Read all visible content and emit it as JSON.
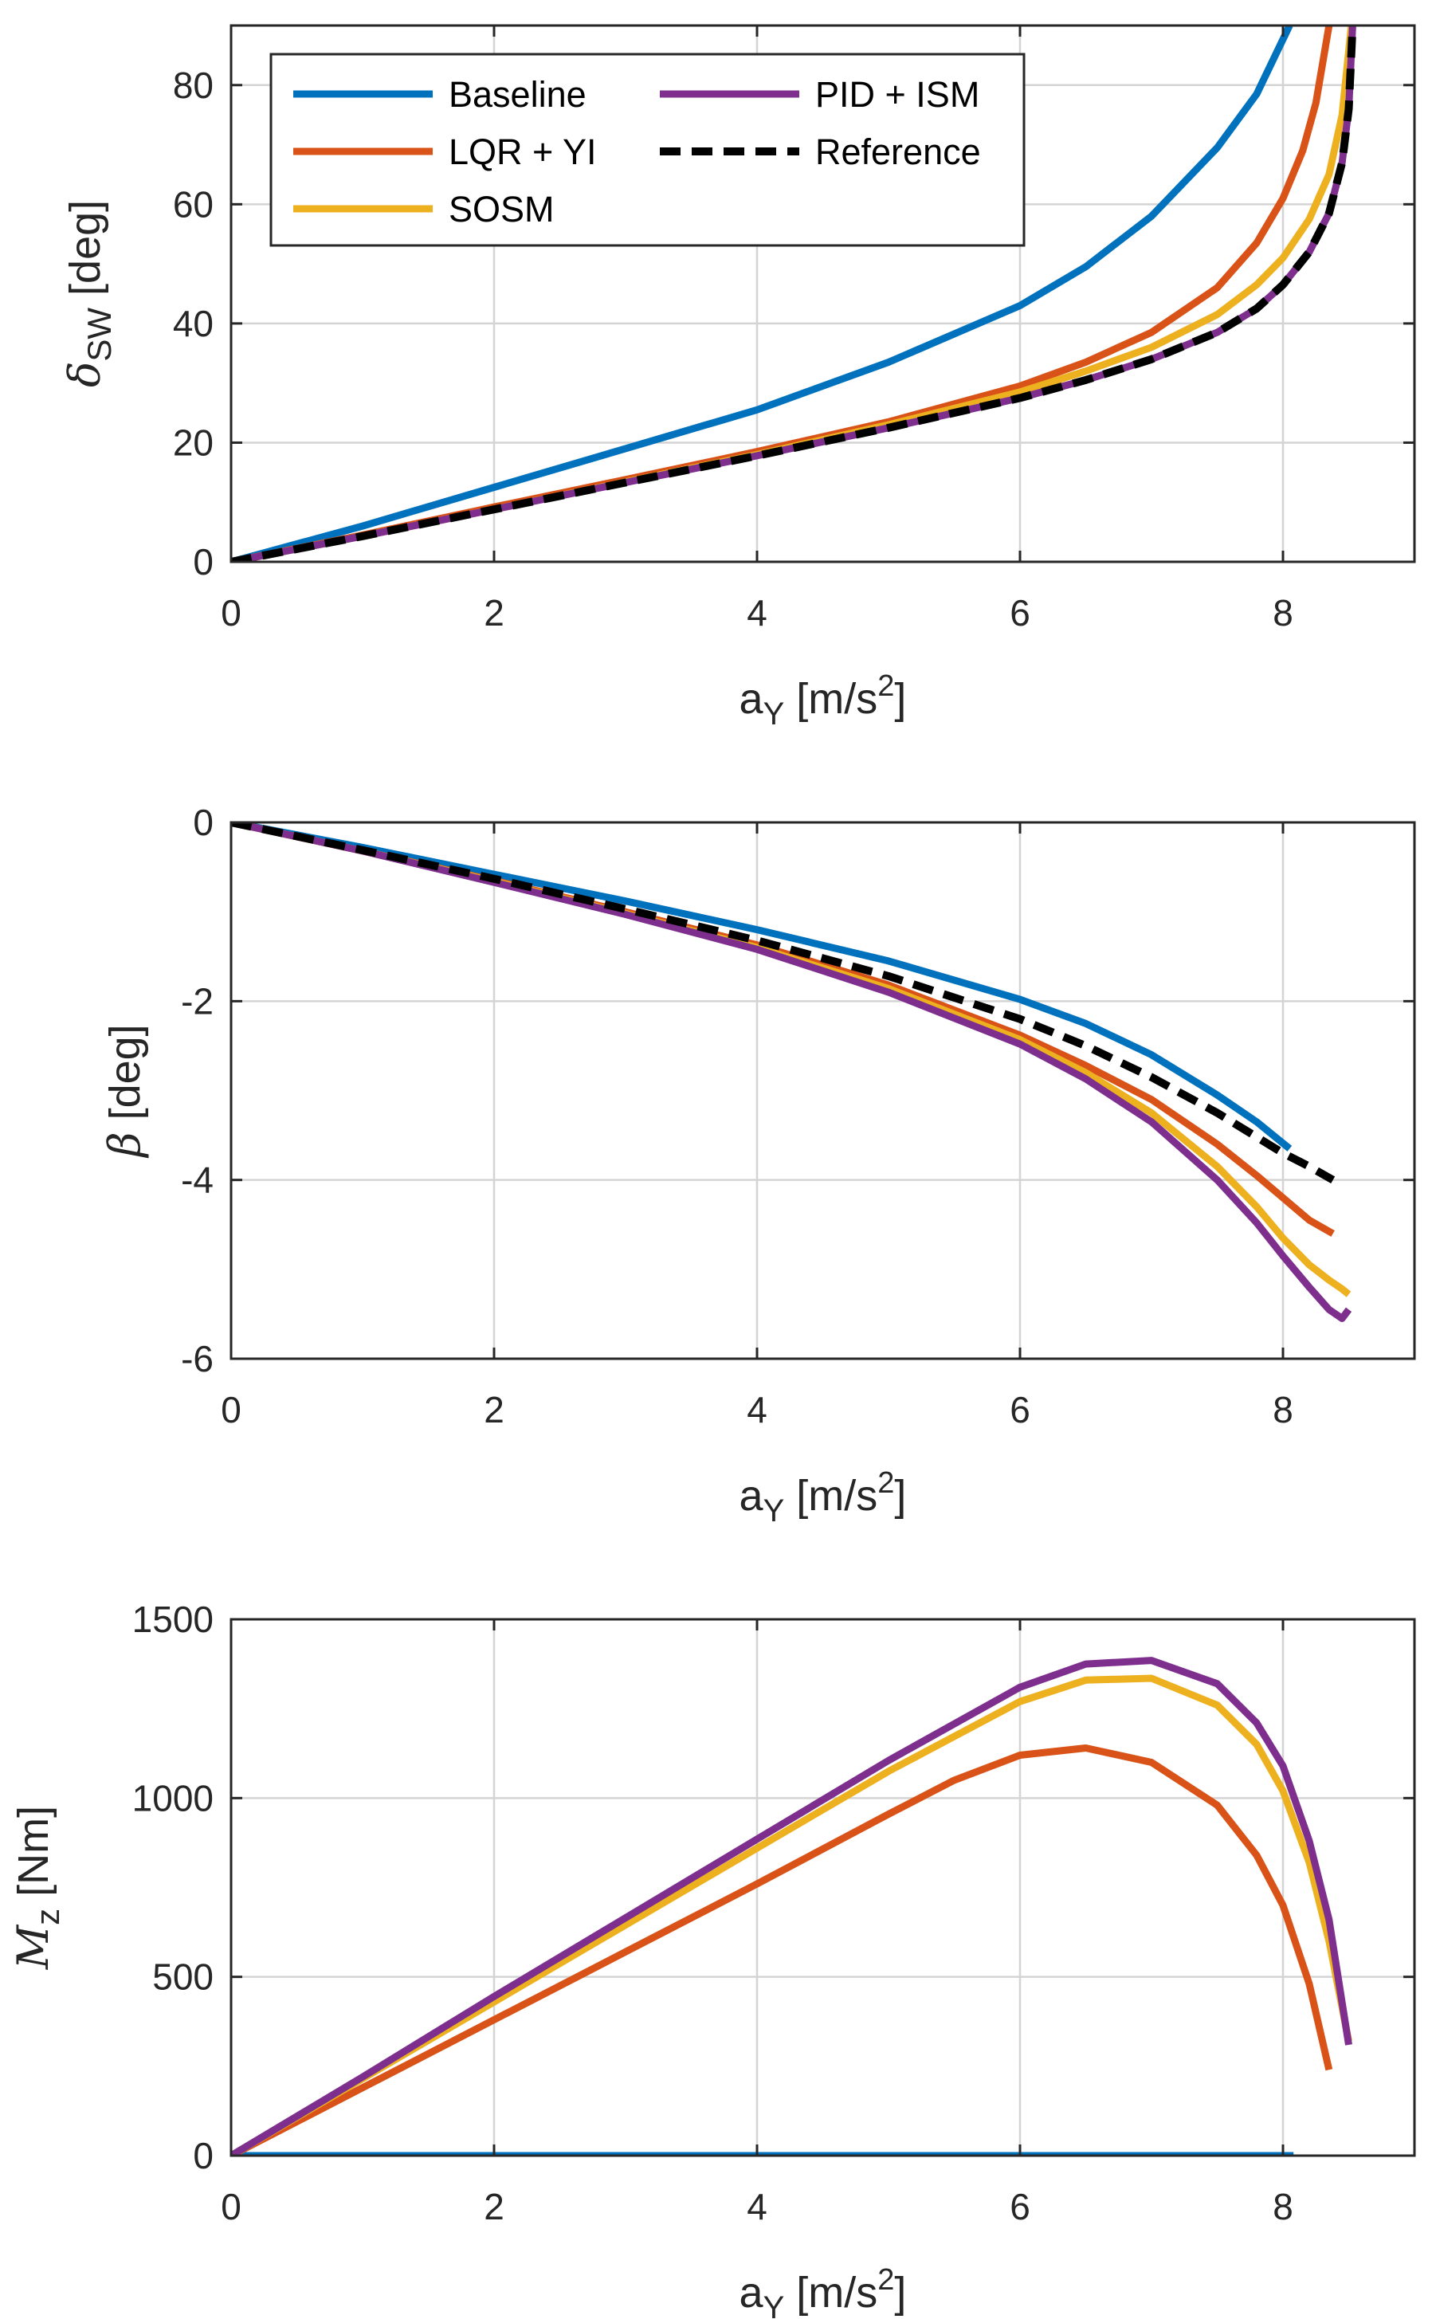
{
  "chart_data": [
    {
      "type": "line",
      "xlabel": {
        "base": "a",
        "sub": "Y",
        "unit_open": " [m/s",
        "sup": "2",
        "unit_close": "]"
      },
      "ylabel": {
        "base": "δ",
        "sub": "SW",
        "unit": " [deg]"
      },
      "xlim": [
        0,
        9
      ],
      "ylim": [
        0,
        90
      ],
      "xticks": [
        0,
        2,
        4,
        6,
        8
      ],
      "yticks": [
        0,
        20,
        40,
        60,
        80
      ],
      "xtick_labels": [
        "0",
        "2",
        "4",
        "6",
        "8"
      ],
      "ytick_labels": [
        "0",
        "20",
        "40",
        "60",
        "80"
      ],
      "grid": true,
      "legend": {
        "placement": "top-left",
        "columns": 2,
        "entries": [
          "Baseline",
          "PID + ISM",
          "LQR + YI",
          "Reference",
          "SOSM"
        ]
      },
      "series": [
        {
          "name": "Baseline",
          "color": "#0072BD",
          "style": "solid",
          "x": [
            0,
            1,
            2,
            3,
            4,
            5,
            6,
            6.5,
            7,
            7.5,
            7.8,
            8.05
          ],
          "y": [
            0,
            6,
            12.5,
            19,
            25.5,
            33.5,
            43,
            49.5,
            58,
            69.5,
            78.5,
            90
          ]
        },
        {
          "name": "LQR + YI",
          "color": "#D95319",
          "style": "solid",
          "x": [
            0,
            1,
            2,
            3,
            4,
            5,
            6,
            6.5,
            7,
            7.5,
            7.8,
            8.0,
            8.15,
            8.25,
            8.35
          ],
          "y": [
            0,
            4.5,
            9.2,
            13.8,
            18.5,
            23.5,
            29.5,
            33.5,
            38.5,
            46,
            53.5,
            61,
            69,
            77,
            90
          ]
        },
        {
          "name": "SOSM",
          "color": "#EDB120",
          "style": "solid",
          "x": [
            0,
            1,
            2,
            3,
            4,
            5,
            6,
            6.5,
            7,
            7.5,
            7.8,
            8.0,
            8.2,
            8.35,
            8.45,
            8.52
          ],
          "y": [
            0,
            4.3,
            8.8,
            13.4,
            18,
            23,
            28.5,
            32,
            36,
            41.5,
            46.5,
            51,
            57.5,
            65,
            75,
            90
          ]
        },
        {
          "name": "PID + ISM",
          "color": "#7E2F8E",
          "style": "solid",
          "x": [
            0,
            1,
            2,
            3,
            4,
            5,
            6,
            6.5,
            7,
            7.5,
            7.8,
            8.0,
            8.2,
            8.35,
            8.45,
            8.5,
            8.53
          ],
          "y": [
            0,
            4.3,
            8.8,
            13.3,
            17.8,
            22.5,
            27.5,
            30.5,
            34,
            38.5,
            42.5,
            46.5,
            52,
            58.5,
            67,
            76,
            90
          ]
        },
        {
          "name": "Reference",
          "color": "#000000",
          "style": "dashed",
          "x": [
            0,
            1,
            2,
            3,
            4,
            5,
            6,
            6.5,
            7,
            7.5,
            7.8,
            8.0,
            8.2,
            8.35,
            8.45,
            8.5,
            8.53
          ],
          "y": [
            0,
            4.3,
            8.8,
            13.3,
            17.8,
            22.5,
            27.5,
            30.5,
            34,
            38.5,
            42.5,
            46.5,
            52,
            58.5,
            67,
            76,
            90
          ]
        }
      ]
    },
    {
      "type": "line",
      "xlabel": {
        "base": "a",
        "sub": "Y",
        "unit_open": " [m/s",
        "sup": "2",
        "unit_close": "]"
      },
      "ylabel": {
        "base": "β",
        "sub": "",
        "unit": " [deg]"
      },
      "xlim": [
        0,
        9
      ],
      "ylim": [
        -6,
        0
      ],
      "xticks": [
        0,
        2,
        4,
        6,
        8
      ],
      "yticks": [
        0,
        -2,
        -4,
        -6
      ],
      "xtick_labels": [
        "0",
        "2",
        "4",
        "6",
        "8"
      ],
      "ytick_labels": [
        "0",
        "-2",
        "-4",
        "-6"
      ],
      "grid": true,
      "series": [
        {
          "name": "Baseline",
          "color": "#0072BD",
          "style": "solid",
          "x": [
            0,
            1,
            2,
            3,
            4,
            5,
            6,
            6.5,
            7,
            7.5,
            7.8,
            8.05
          ],
          "y": [
            0,
            -0.28,
            -0.58,
            -0.88,
            -1.2,
            -1.55,
            -1.98,
            -2.25,
            -2.6,
            -3.05,
            -3.35,
            -3.65
          ]
        },
        {
          "name": "LQR + YI",
          "color": "#D95319",
          "style": "solid",
          "x": [
            0,
            1,
            2,
            3,
            4,
            5,
            6,
            6.5,
            7,
            7.5,
            7.8,
            8.0,
            8.2,
            8.38
          ],
          "y": [
            0,
            -0.32,
            -0.65,
            -1.0,
            -1.37,
            -1.82,
            -2.38,
            -2.72,
            -3.1,
            -3.6,
            -3.95,
            -4.2,
            -4.45,
            -4.6
          ]
        },
        {
          "name": "SOSM",
          "color": "#EDB120",
          "style": "solid",
          "x": [
            0,
            1,
            2,
            3,
            4,
            5,
            6,
            6.5,
            7,
            7.5,
            7.8,
            8.0,
            8.2,
            8.35,
            8.45,
            8.5
          ],
          "y": [
            0,
            -0.32,
            -0.66,
            -1.02,
            -1.4,
            -1.86,
            -2.43,
            -2.8,
            -3.25,
            -3.85,
            -4.3,
            -4.65,
            -4.95,
            -5.12,
            -5.22,
            -5.28
          ]
        },
        {
          "name": "PID + ISM",
          "color": "#7E2F8E",
          "style": "solid",
          "x": [
            0,
            1,
            2,
            3,
            4,
            5,
            6,
            6.5,
            7,
            7.5,
            7.8,
            8.0,
            8.2,
            8.35,
            8.45,
            8.5
          ],
          "y": [
            0,
            -0.32,
            -0.67,
            -1.03,
            -1.42,
            -1.9,
            -2.48,
            -2.87,
            -3.35,
            -4.0,
            -4.48,
            -4.85,
            -5.2,
            -5.45,
            -5.55,
            -5.45
          ]
        },
        {
          "name": "Reference",
          "color": "#000000",
          "style": "dashed",
          "x": [
            0,
            1,
            2,
            3,
            4,
            5,
            6,
            6.5,
            7,
            7.5,
            7.8,
            8.0,
            8.2,
            8.38
          ],
          "y": [
            0,
            -0.31,
            -0.63,
            -0.97,
            -1.32,
            -1.72,
            -2.2,
            -2.5,
            -2.85,
            -3.25,
            -3.52,
            -3.7,
            -3.85,
            -4.0
          ]
        }
      ]
    },
    {
      "type": "line",
      "xlabel": {
        "base": "a",
        "sub": "Y",
        "unit_open": " [m/s",
        "sup": "2",
        "unit_close": "]"
      },
      "ylabel": {
        "base": "M",
        "sub": "z",
        "unit": " [Nm]"
      },
      "xlim": [
        0,
        9
      ],
      "ylim": [
        0,
        1500
      ],
      "xticks": [
        0,
        2,
        4,
        6,
        8
      ],
      "yticks": [
        0,
        500,
        1000,
        1500
      ],
      "xtick_labels": [
        "0",
        "2",
        "4",
        "6",
        "8"
      ],
      "ytick_labels": [
        "0",
        "500",
        "1000",
        "1500"
      ],
      "grid": true,
      "series": [
        {
          "name": "Baseline",
          "color": "#0072BD",
          "style": "solid",
          "x": [
            0,
            8.08
          ],
          "y": [
            0,
            0
          ]
        },
        {
          "name": "LQR + YI",
          "color": "#D95319",
          "style": "solid",
          "x": [
            0,
            1,
            2,
            3,
            4,
            5,
            5.5,
            6,
            6.5,
            7,
            7.5,
            7.8,
            8.0,
            8.2,
            8.35
          ],
          "y": [
            0,
            190,
            380,
            570,
            760,
            955,
            1050,
            1120,
            1140,
            1100,
            980,
            840,
            700,
            480,
            240
          ]
        },
        {
          "name": "SOSM",
          "color": "#EDB120",
          "style": "solid",
          "x": [
            0,
            1,
            2,
            3,
            4,
            5,
            6,
            6.5,
            7,
            7.5,
            7.8,
            8.0,
            8.2,
            8.35,
            8.5
          ],
          "y": [
            0,
            215,
            430,
            645,
            860,
            1075,
            1270,
            1330,
            1335,
            1260,
            1150,
            1020,
            820,
            600,
            320
          ]
        },
        {
          "name": "PID + ISM",
          "color": "#7E2F8E",
          "style": "solid",
          "x": [
            0,
            1,
            2,
            3,
            4,
            5,
            6,
            6.5,
            7,
            7.5,
            7.8,
            8.0,
            8.2,
            8.35,
            8.5
          ],
          "y": [
            0,
            220,
            445,
            665,
            885,
            1105,
            1310,
            1375,
            1385,
            1320,
            1210,
            1090,
            880,
            660,
            310
          ]
        }
      ]
    }
  ]
}
